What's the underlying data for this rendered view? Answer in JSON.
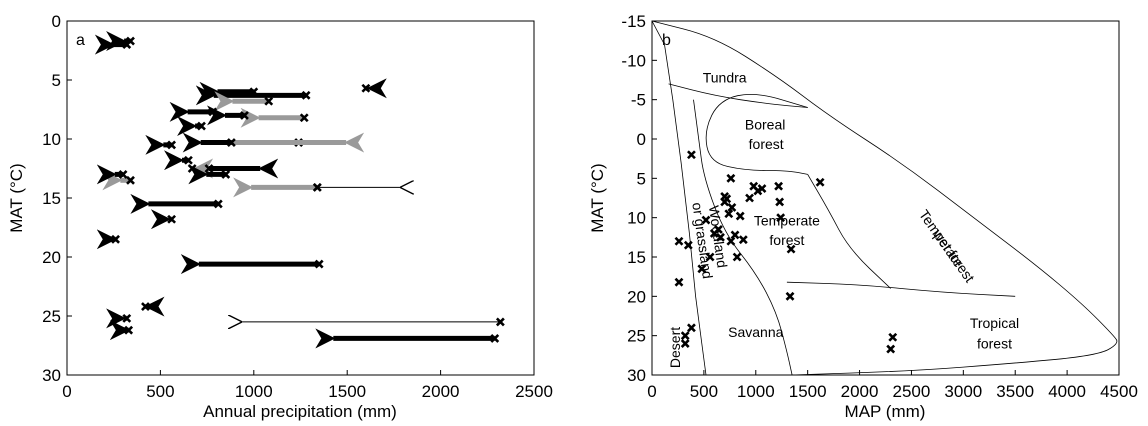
{
  "chart_data": [
    {
      "panel": "a",
      "type": "scatter",
      "xlabel": "Annual precipitation (mm)",
      "ylabel": "MAT (°C)",
      "xlim": [
        0,
        2500
      ],
      "ylim": [
        30,
        0
      ],
      "x_ticks": [
        "0",
        "500",
        "1000",
        "1500",
        "2000",
        "2500"
      ],
      "y_ticks": [
        "0",
        "5",
        "10",
        "15",
        "20",
        "25",
        "30"
      ],
      "arrows": [
        {
          "x0": 320,
          "x1": 160,
          "y": 2.0,
          "style": "thick"
        },
        {
          "x0": 340,
          "x1": 220,
          "y": 1.7,
          "style": "thick"
        },
        {
          "x0": 1280,
          "x1": 700,
          "y": 6.3,
          "style": "thick"
        },
        {
          "x0": 1000,
          "x1": 720,
          "y": 6.0,
          "style": "thick"
        },
        {
          "x0": 1600,
          "x1": 1530,
          "y": 5.7,
          "style": "thick"
        },
        {
          "x0": 1080,
          "x1": 800,
          "y": 6.8,
          "style": "gray"
        },
        {
          "x0": 1270,
          "x1": 940,
          "y": 8.2,
          "style": "gray"
        },
        {
          "x0": 780,
          "x1": 560,
          "y": 7.7,
          "style": "thick"
        },
        {
          "x0": 950,
          "x1": 760,
          "y": 8.0,
          "style": "thick"
        },
        {
          "x0": 720,
          "x1": 600,
          "y": 8.9,
          "style": "thick"
        },
        {
          "x0": 1240,
          "x1": 630,
          "y": 10.3,
          "style": "thick"
        },
        {
          "x0": 880,
          "x1": 1580,
          "y": 10.3,
          "style": "gray"
        },
        {
          "x0": 560,
          "x1": 430,
          "y": 10.5,
          "style": "thick"
        },
        {
          "x0": 650,
          "x1": 530,
          "y": 11.8,
          "style": "thick"
        },
        {
          "x0": 670,
          "x1": 600,
          "y": 12.5,
          "style": "gray"
        },
        {
          "x0": 760,
          "x1": 1120,
          "y": 12.5,
          "style": "thick"
        },
        {
          "x0": 850,
          "x1": 660,
          "y": 13.0,
          "style": "thick"
        },
        {
          "x0": 1340,
          "x1": 900,
          "y": 14.1,
          "style": "gray"
        },
        {
          "x0": 1340,
          "x1": 1790,
          "y": 14.1,
          "style": "thin"
        },
        {
          "x0": 340,
          "x1": 200,
          "y": 13.5,
          "style": "gray"
        },
        {
          "x0": 300,
          "x1": 170,
          "y": 13.0,
          "style": "thick"
        },
        {
          "x0": 810,
          "x1": 350,
          "y": 15.5,
          "style": "thick"
        },
        {
          "x0": 560,
          "x1": 460,
          "y": 16.8,
          "style": "thick"
        },
        {
          "x0": 260,
          "x1": 170,
          "y": 18.5,
          "style": "thick"
        },
        {
          "x0": 1350,
          "x1": 620,
          "y": 20.6,
          "style": "thick"
        },
        {
          "x0": 420,
          "x1": 340,
          "y": 24.2,
          "style": "thick"
        },
        {
          "x0": 2320,
          "x1": 930,
          "y": 25.5,
          "style": "thin"
        },
        {
          "x0": 320,
          "x1": 220,
          "y": 25.2,
          "style": "thick"
        },
        {
          "x0": 330,
          "x1": 240,
          "y": 26.2,
          "style": "thick"
        },
        {
          "x0": 2290,
          "x1": 1340,
          "y": 26.9,
          "style": "thick"
        }
      ]
    },
    {
      "panel": "b",
      "type": "scatter",
      "xlabel": "MAP (mm)",
      "ylabel": "MAT (°C)",
      "xlim": [
        0,
        4500
      ],
      "ylim": [
        30,
        -15
      ],
      "x_ticks": [
        "0",
        "500",
        "1000",
        "1500",
        "2000",
        "2500",
        "3000",
        "3500",
        "4000",
        "4500"
      ],
      "y_ticks": [
        "-15",
        "-10",
        "-5",
        "0",
        "5",
        "10",
        "15",
        "20",
        "25",
        "30"
      ],
      "biomes": [
        "Tundra",
        "Boreal",
        "forest",
        "Temperate",
        "forest",
        "Temperate",
        "wet forest",
        "Woodland",
        "or grassland",
        "Savanna",
        "Desert",
        "Tropical",
        "forest"
      ],
      "points": [
        {
          "x": 380,
          "y": 2.0
        },
        {
          "x": 260,
          "y": 13.0
        },
        {
          "x": 350,
          "y": 13.5
        },
        {
          "x": 260,
          "y": 18.2
        },
        {
          "x": 520,
          "y": 10.3
        },
        {
          "x": 480,
          "y": 16.5
        },
        {
          "x": 560,
          "y": 15.0
        },
        {
          "x": 600,
          "y": 12.0
        },
        {
          "x": 640,
          "y": 11.5
        },
        {
          "x": 660,
          "y": 12.5
        },
        {
          "x": 700,
          "y": 8.0
        },
        {
          "x": 720,
          "y": 7.6
        },
        {
          "x": 740,
          "y": 9.5
        },
        {
          "x": 770,
          "y": 8.7
        },
        {
          "x": 760,
          "y": 5.0
        },
        {
          "x": 800,
          "y": 12.2
        },
        {
          "x": 820,
          "y": 15.0
        },
        {
          "x": 850,
          "y": 9.8
        },
        {
          "x": 880,
          "y": 12.8
        },
        {
          "x": 940,
          "y": 7.5
        },
        {
          "x": 980,
          "y": 6.0
        },
        {
          "x": 1020,
          "y": 6.6
        },
        {
          "x": 1060,
          "y": 6.3
        },
        {
          "x": 1220,
          "y": 6.0
        },
        {
          "x": 1230,
          "y": 8.0
        },
        {
          "x": 1240,
          "y": 10.0
        },
        {
          "x": 1340,
          "y": 14.0
        },
        {
          "x": 1330,
          "y": 20.0
        },
        {
          "x": 1620,
          "y": 5.5
        },
        {
          "x": 380,
          "y": 24.0
        },
        {
          "x": 320,
          "y": 25.0
        },
        {
          "x": 320,
          "y": 26.0
        },
        {
          "x": 2320,
          "y": 25.2
        },
        {
          "x": 2300,
          "y": 26.7
        },
        {
          "x": 700,
          "y": 7.3
        },
        {
          "x": 760,
          "y": 13.0
        }
      ]
    }
  ],
  "panel_labels": {
    "a": "a",
    "b": "b"
  }
}
